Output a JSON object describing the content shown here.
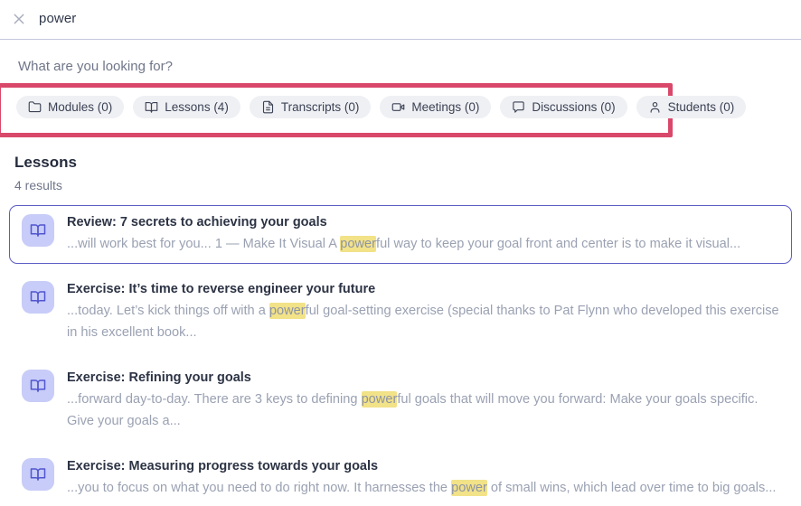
{
  "annotation": {
    "type": "highlight-box",
    "color": "#d9486a"
  },
  "search": {
    "query": "power",
    "prompt": "What are you looking for?"
  },
  "filters": [
    {
      "icon": "folder-icon",
      "label": "Modules",
      "count": 0,
      "display": "Modules (0)"
    },
    {
      "icon": "book-open-icon",
      "label": "Lessons",
      "count": 4,
      "display": "Lessons (4)"
    },
    {
      "icon": "file-text-icon",
      "label": "Transcripts",
      "count": 0,
      "display": "Transcripts (0)"
    },
    {
      "icon": "video-icon",
      "label": "Meetings",
      "count": 0,
      "display": "Meetings (0)"
    },
    {
      "icon": "chat-icon",
      "label": "Discussions",
      "count": 0,
      "display": "Discussions (0)"
    },
    {
      "icon": "user-icon",
      "label": "Students",
      "count": 0,
      "display": "Students (0)"
    }
  ],
  "section": {
    "title": "Lessons",
    "results_count": "4 results"
  },
  "results": [
    {
      "title": "Review: 7 secrets to achieving your goals",
      "selected": true,
      "snippet": [
        {
          "text": "...will work best for you... 1 — Make It Visual A "
        },
        {
          "text": "power",
          "highlight": true
        },
        {
          "text": "ful way to keep your goal front and center is to make it visual..."
        }
      ]
    },
    {
      "title": "Exercise: It’s time to reverse engineer your future",
      "selected": false,
      "snippet": [
        {
          "text": "...today. Let’s kick things off with a "
        },
        {
          "text": "power",
          "highlight": true
        },
        {
          "text": "ful goal-setting exercise (special thanks to Pat Flynn who developed this exercise in his excellent book..."
        }
      ]
    },
    {
      "title": "Exercise: Refining your goals",
      "selected": false,
      "snippet": [
        {
          "text": "...forward day-to-day. There are 3 keys to defining "
        },
        {
          "text": "power",
          "highlight": true
        },
        {
          "text": "ful goals that will move you forward: Make your goals specific. Give your goals a..."
        }
      ]
    },
    {
      "title": "Exercise: Measuring progress towards your goals",
      "selected": false,
      "snippet": [
        {
          "text": "...you to focus on what you need to do right now. It harnesses the "
        },
        {
          "text": "power",
          "highlight": true
        },
        {
          "text": " of small wins, which lead over time to big goals..."
        }
      ]
    }
  ],
  "colors": {
    "annotation_red": "#d9486a",
    "selected_card_border": "#5c5dc3",
    "result_icon_bg": "#c7ccf8",
    "result_icon_glyph": "#5155ce",
    "keyword_highlight": "#f2e288",
    "chip_bg": "#eff0f4"
  }
}
